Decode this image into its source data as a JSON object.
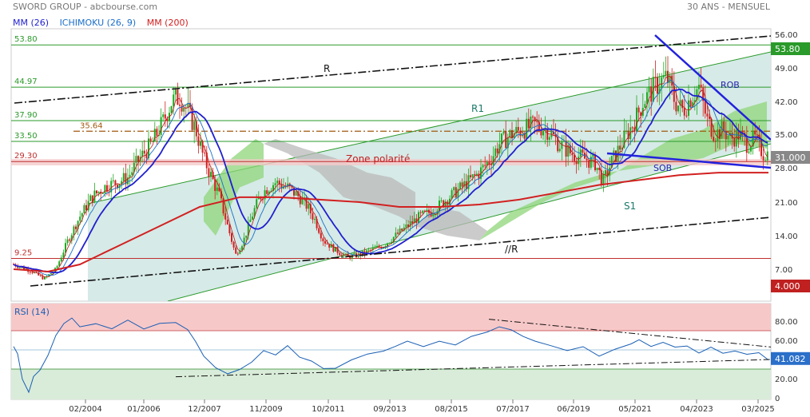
{
  "header": {
    "source": "SWORD GROUP - abcbourse.com",
    "period": "30 ANS - MENSUEL"
  },
  "legend": {
    "items": [
      {
        "label": "MM (26)",
        "color": "#1f1fd0"
      },
      {
        "label": "ICHIMOKU (26, 9)",
        "color": "#1a6fc9"
      },
      {
        "label": "MM (200)",
        "color": "#d22020"
      }
    ]
  },
  "chart_data": [
    {
      "type": "candlestick",
      "x_ticks": [
        "02/2004",
        "01/2006",
        "12/2007",
        "11/2009",
        "10/2011",
        "09/2013",
        "08/2015",
        "07/2017",
        "06/2019",
        "05/2021",
        "04/2023",
        "03/2025"
      ],
      "y_ticks": [
        "56.00",
        "49.00",
        "42.00",
        "35.00",
        "28.00",
        "21.00",
        "14.00",
        "7.00"
      ],
      "levels": [
        {
          "value": 53.8,
          "label": "53.80",
          "color": "#2a9a2a",
          "style": "solid"
        },
        {
          "value": 44.97,
          "label": "44.97",
          "color": "#2a9a2a",
          "style": "solid"
        },
        {
          "value": 37.9,
          "label": "37.90",
          "color": "#2a9a2a",
          "style": "solid"
        },
        {
          "value": 35.64,
          "label": "35.64",
          "color": "#a05a10",
          "style": "dashdot"
        },
        {
          "value": 33.5,
          "label": "33.50",
          "color": "#2a9a2a",
          "style": "solid"
        },
        {
          "value": 29.3,
          "label": "29.30",
          "color": "#c03030",
          "style": "solid"
        },
        {
          "value": 9.25,
          "label": "9.25",
          "color": "#c03030",
          "style": "solid"
        }
      ],
      "price_badges": [
        {
          "value": "53.80",
          "color": "#2a9a2a"
        },
        {
          "value": "31.000",
          "color": "#888888"
        },
        {
          "value": "4.000",
          "color": "#c02020"
        }
      ],
      "annotations": [
        "R",
        "R1",
        "ROB",
        "Zone polarité",
        "SOB",
        "S1",
        "//R"
      ],
      "series": [
        {
          "name": "MM (26)",
          "color": "#1f1fd0"
        },
        {
          "name": "ICHIMOKU (26, 9)",
          "color": "#1a6fc9"
        },
        {
          "name": "MM (200)",
          "color": "#d22020"
        }
      ]
    },
    {
      "type": "line",
      "title": "RSI (14)",
      "y_ticks": [
        "80.00",
        "60.00",
        "40.00",
        "20.00",
        "0"
      ],
      "ylim": [
        0,
        100
      ],
      "bands": [
        {
          "from": 70,
          "to": 100,
          "color": "#f7c8c8"
        },
        {
          "from": 0,
          "to": 30,
          "color": "#d9ecd9"
        }
      ],
      "last_value": "41.082"
    }
  ]
}
